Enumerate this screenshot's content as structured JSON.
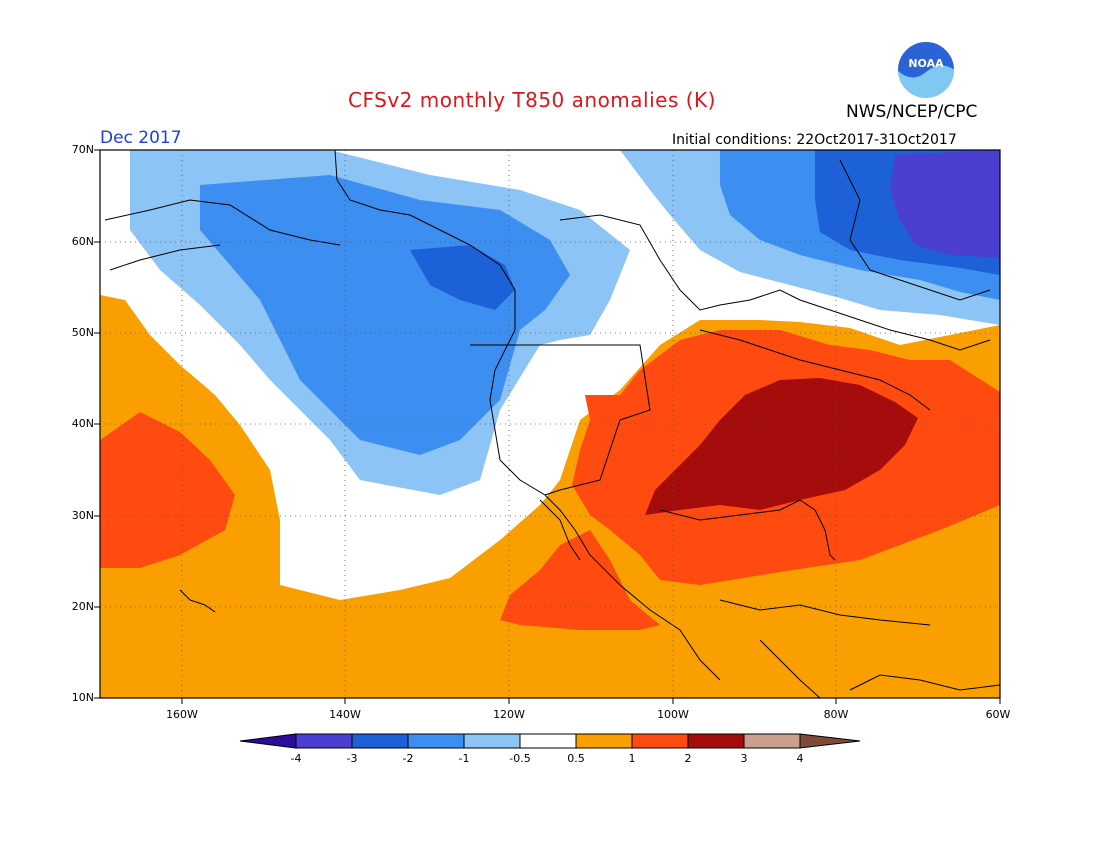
{
  "title": "CFSv2 monthly T850 anomalies (K)",
  "month": "Dec 2017",
  "agency": "NWS/NCEP/CPC",
  "logo_text": "NOAA",
  "initial_conditions": "Initial conditions: 22Oct2017-31Oct2017",
  "lat_labels": [
    "70N",
    "60N",
    "50N",
    "40N",
    "30N",
    "20N",
    "10N"
  ],
  "lon_labels": [
    "160W",
    "140W",
    "120W",
    "100W",
    "80W",
    "60W"
  ],
  "colorbar": {
    "labels": [
      "-4",
      "-3",
      "-2",
      "-1",
      "-0.5",
      "0.5",
      "1",
      "2",
      "3",
      "4"
    ],
    "colors": [
      "#2c0c9c",
      "#4a3fd0",
      "#1c61d8",
      "#3c8ef0",
      "#8cc4f6",
      "#ffffff",
      "#f9a000",
      "#ff4a10",
      "#a50d0d",
      "#c8a08c",
      "#7d4b3a"
    ]
  }
}
